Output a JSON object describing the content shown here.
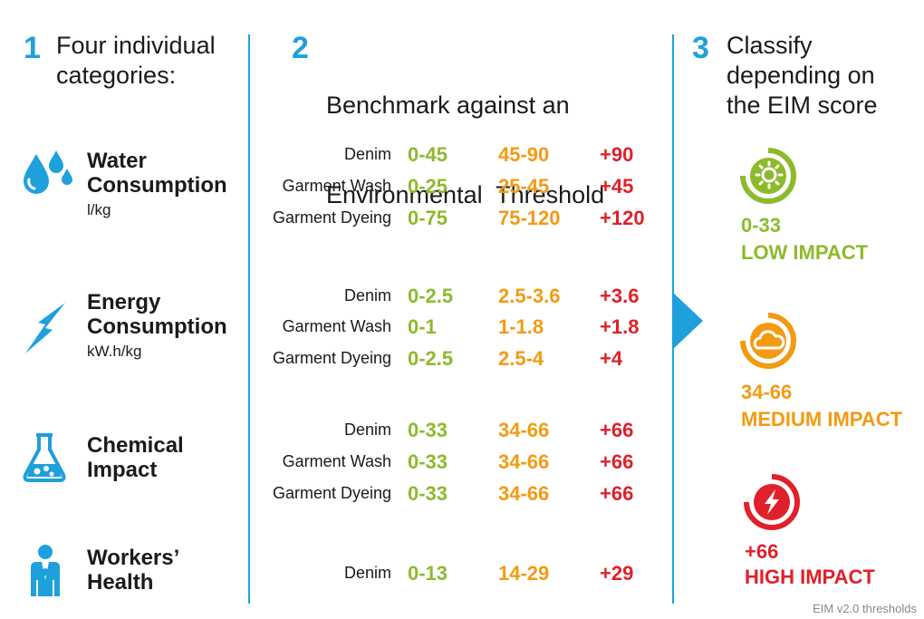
{
  "steps": [
    {
      "number": "1",
      "lines": [
        "Four individual",
        "categories:"
      ]
    },
    {
      "number": "2",
      "lines": [
        "Benchmark against an",
        "Environmental  Threshold"
      ]
    },
    {
      "number": "3",
      "lines": [
        "Classify",
        "depending on",
        "the EIM score"
      ]
    }
  ],
  "categories": [
    {
      "title1": "Water",
      "title2": "Consumption",
      "unit": "l/kg",
      "icon": "water-drops-icon",
      "rows": [
        {
          "label": "Denim",
          "low": "0-45",
          "med": "45-90",
          "high": "+90"
        },
        {
          "label": "Garment Wash",
          "low": "0-25",
          "med": "25-45",
          "high": "+45"
        },
        {
          "label": "Garment Dyeing",
          "low": "0-75",
          "med": "75-120",
          "high": "+120"
        }
      ]
    },
    {
      "title1": "Energy",
      "title2": "Consumption",
      "unit": "kW.h/kg",
      "icon": "lightning-bolt-icon",
      "rows": [
        {
          "label": "Denim",
          "low": "0-2.5",
          "med": "2.5-3.6",
          "high": "+3.6"
        },
        {
          "label": "Garment Wash",
          "low": "0-1",
          "med": "1-1.8",
          "high": "+1.8"
        },
        {
          "label": "Garment Dyeing",
          "low": "0-2.5",
          "med": "2.5-4",
          "high": "+4"
        }
      ]
    },
    {
      "title1": "Chemical",
      "title2": "Impact",
      "unit": "",
      "icon": "flask-icon",
      "rows": [
        {
          "label": "Denim",
          "low": "0-33",
          "med": "34-66",
          "high": "+66"
        },
        {
          "label": "Garment Wash",
          "low": "0-33",
          "med": "34-66",
          "high": "+66"
        },
        {
          "label": "Garment Dyeing",
          "low": "0-33",
          "med": "34-66",
          "high": "+66"
        }
      ]
    },
    {
      "title1": "Workers’",
      "title2": "Health",
      "unit": "",
      "icon": "worker-icon",
      "rows": [
        {
          "label": "Denim",
          "low": "0-13",
          "med": "14-29",
          "high": "+29"
        }
      ]
    }
  ],
  "classes": [
    {
      "score": "0-33",
      "label": "LOW IMPACT",
      "color": "#8dba2c",
      "icon": "sun-gauge-icon"
    },
    {
      "score": "34-66",
      "label": "MEDIUM IMPACT",
      "color": "#f39a12",
      "icon": "cloud-gauge-icon"
    },
    {
      "score": "+66",
      "label": "HIGH IMPACT",
      "color": "#e0202a",
      "icon": "bolt-gauge-icon"
    }
  ],
  "colors": {
    "accent": "#1ea0dc",
    "low": "#8dba2c",
    "medium": "#f39a12",
    "high": "#e0202a"
  },
  "footer": "EIM v2.0 thresholds"
}
